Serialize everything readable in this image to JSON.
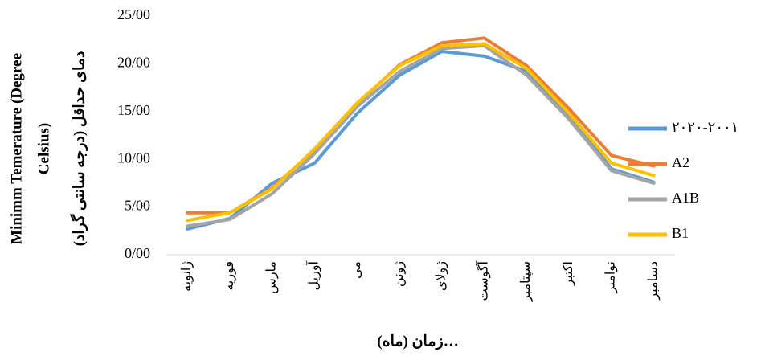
{
  "chart_data": {
    "type": "line",
    "y_label": [
      "Minimm Temerature (Degree",
      "Celsius)",
      "دمای حداقل (درجه سانتی گراد)"
    ],
    "x_label": "زمان (ماه)…",
    "categories": [
      "ژانویه",
      "فوریه",
      "مارس",
      "آوریل",
      "می",
      "ژوئن",
      "ژولای",
      "آگوست",
      "سپتامبر",
      "اکتبر",
      "نوامبر",
      "دسامبر"
    ],
    "series": [
      {
        "name": "۲۰۲۰-۲۰۰۱",
        "color": "#5b9bd5",
        "values": [
          2.7,
          3.8,
          7.5,
          9.6,
          14.8,
          18.8,
          21.3,
          20.8,
          19.2,
          14.6,
          9.0,
          7.6
        ]
      },
      {
        "name": "A2",
        "color": "#ed7d31",
        "values": [
          4.4,
          4.4,
          7.0,
          11.0,
          15.8,
          19.9,
          22.2,
          22.7,
          19.8,
          15.3,
          10.4,
          9.3
        ]
      },
      {
        "name": "A1B",
        "color": "#a5a5a5",
        "values": [
          3.0,
          3.7,
          6.4,
          10.6,
          15.5,
          19.2,
          21.6,
          21.9,
          18.8,
          14.2,
          8.8,
          7.5
        ]
      },
      {
        "name": "B1",
        "color": "#ffc000",
        "values": [
          3.6,
          4.4,
          6.9,
          11.1,
          15.9,
          19.8,
          21.9,
          22.1,
          19.5,
          14.8,
          9.6,
          8.3
        ]
      }
    ],
    "ylim": [
      0,
      25
    ],
    "yticks": [
      {
        "value": 0,
        "label": "0/00"
      },
      {
        "value": 5,
        "label": "5/00"
      },
      {
        "value": 10,
        "label": "10/00"
      },
      {
        "value": 15,
        "label": "15/00"
      },
      {
        "value": 20,
        "label": "20/00"
      },
      {
        "value": 25,
        "label": "25/00"
      }
    ],
    "grid": false,
    "legend": "right"
  }
}
